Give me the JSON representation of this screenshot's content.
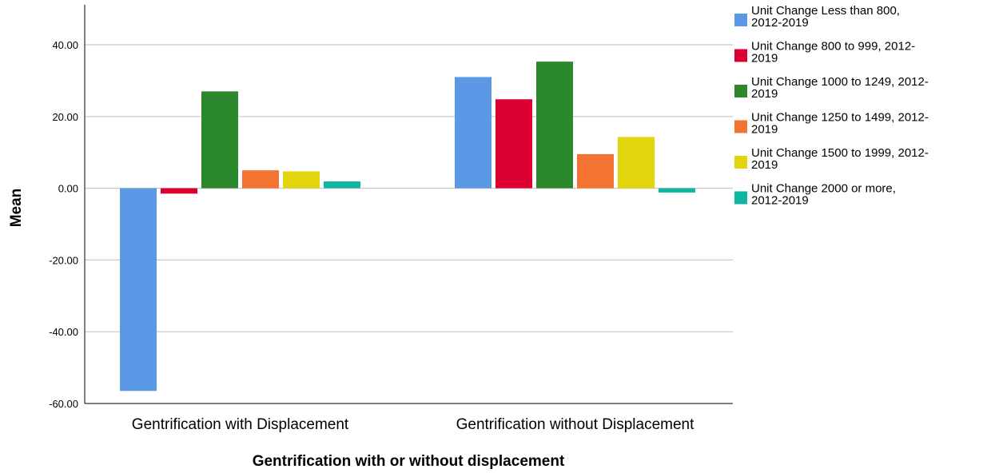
{
  "chart_data": {
    "type": "bar",
    "xlabel": "Gentrification with or without displacement",
    "ylabel": "Mean",
    "ylim": [
      -60,
      40
    ],
    "yticks": [
      "40.00",
      "20.00",
      "0.00",
      "-20.00",
      "-40.00",
      "-60.00"
    ],
    "ytick_values": [
      40,
      20,
      0,
      -20,
      -40,
      -60
    ],
    "grid": true,
    "legend_position": "right",
    "categories": [
      "Gentrification with Displacement",
      "Gentrification without Displacement"
    ],
    "series": [
      {
        "name": "Unit Change Less than 800, 2012-2019",
        "legend_lines": [
          "Unit Change Less than 800,",
          "2012-2019"
        ],
        "color": "#5b98e6",
        "values": [
          -56.5,
          31.0
        ]
      },
      {
        "name": "Unit Change 800 to 999, 2012-2019",
        "legend_lines": [
          "Unit Change 800 to 999, 2012-",
          "2019"
        ],
        "color": "#dc0032",
        "values": [
          -1.5,
          24.8
        ]
      },
      {
        "name": "Unit Change 1000 to 1249, 2012-2019",
        "legend_lines": [
          "Unit Change 1000 to 1249, 2012-",
          "2019"
        ],
        "color": "#2b882d",
        "values": [
          27.0,
          35.3
        ]
      },
      {
        "name": "Unit Change 1250 to 1499, 2012-2019",
        "legend_lines": [
          "Unit Change 1250 to 1499, 2012-",
          "2019"
        ],
        "color": "#f47232",
        "values": [
          5.0,
          9.5
        ]
      },
      {
        "name": "Unit Change 1500 to 1999, 2012-2019",
        "legend_lines": [
          "Unit Change 1500 to 1999, 2012-",
          "2019"
        ],
        "color": "#e3d50b",
        "values": [
          4.7,
          14.3
        ]
      },
      {
        "name": "Unit Change 2000 or more, 2012-2019",
        "legend_lines": [
          "Unit Change 2000 or more,",
          "2012-2019"
        ],
        "color": "#0fb6a2",
        "values": [
          1.9,
          -1.2
        ]
      }
    ]
  }
}
